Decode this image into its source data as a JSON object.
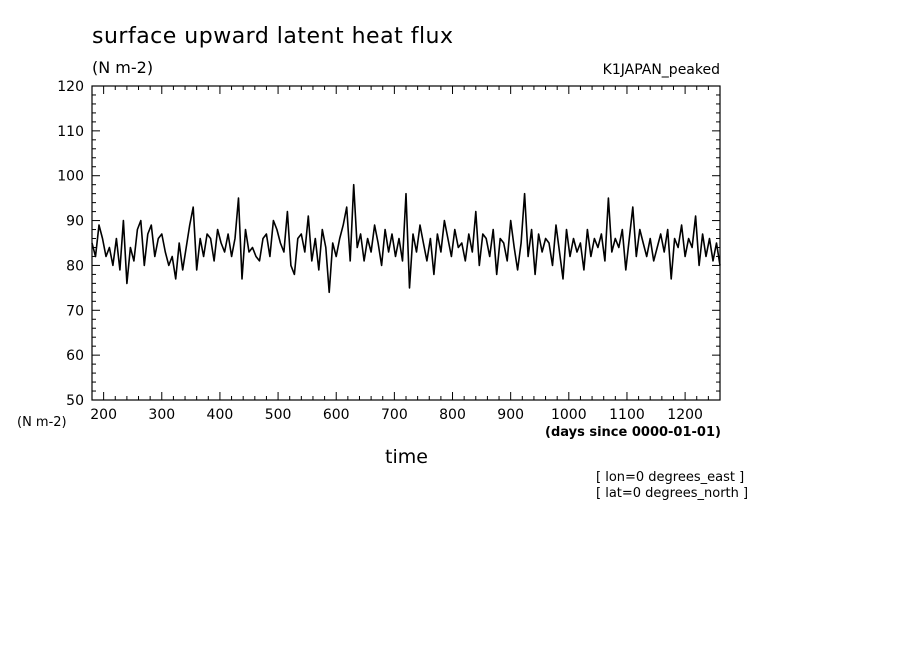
{
  "chart_data": {
    "type": "line",
    "title": "surface upward latent heat flux",
    "ylabel": "(N m-2)",
    "y_units_left": "(N m-2)",
    "xlabel": "time",
    "x_units": "(days since 0000-01-01)",
    "run_label": "K1JAPAN_peaked",
    "annotations": [
      "[ lon=0 degrees_east ]",
      "[ lat=0 degrees_north ]"
    ],
    "xlim": [
      180,
      1260
    ],
    "ylim": [
      50,
      120
    ],
    "x_major_ticks": [
      200,
      300,
      400,
      500,
      600,
      700,
      800,
      900,
      1000,
      1100,
      1200
    ],
    "y_major_ticks": [
      50,
      60,
      70,
      80,
      90,
      100,
      110,
      120
    ],
    "grid": false,
    "series": [
      {
        "x": [
          180,
          186,
          192,
          198,
          204,
          210,
          216,
          222,
          228,
          234,
          240,
          246,
          252,
          258,
          264,
          270,
          276,
          282,
          288,
          294,
          300,
          306,
          312,
          318,
          324,
          330,
          336,
          342,
          348,
          354,
          360,
          366,
          372,
          378,
          384,
          390,
          396,
          402,
          408,
          414,
          420,
          426,
          432,
          438,
          444,
          450,
          456,
          462,
          468,
          474,
          480,
          486,
          492,
          498,
          504,
          510,
          516,
          522,
          528,
          534,
          540,
          546,
          552,
          558,
          564,
          570,
          576,
          582,
          588,
          594,
          600,
          606,
          612,
          618,
          624,
          630,
          636,
          642,
          648,
          654,
          660,
          666,
          672,
          678,
          684,
          690,
          696,
          702,
          708,
          714,
          720,
          726,
          732,
          738,
          744,
          750,
          756,
          762,
          768,
          774,
          780,
          786,
          792,
          798,
          804,
          810,
          816,
          822,
          828,
          834,
          840,
          846,
          852,
          858,
          864,
          870,
          876,
          882,
          888,
          894,
          900,
          906,
          912,
          918,
          924,
          930,
          936,
          942,
          948,
          954,
          960,
          966,
          972,
          978,
          984,
          990,
          996,
          1002,
          1008,
          1014,
          1020,
          1026,
          1032,
          1038,
          1044,
          1050,
          1056,
          1062,
          1068,
          1074,
          1080,
          1086,
          1092,
          1098,
          1104,
          1110,
          1116,
          1122,
          1128,
          1134,
          1140,
          1146,
          1152,
          1158,
          1164,
          1170,
          1176,
          1182,
          1188,
          1194,
          1200,
          1206,
          1212,
          1218,
          1224,
          1230,
          1236,
          1242,
          1248,
          1254,
          1260
        ],
        "values": [
          85,
          82,
          89,
          86,
          82,
          84,
          80,
          86,
          79,
          90,
          76,
          84,
          81,
          88,
          90,
          80,
          87,
          89,
          82,
          86,
          87,
          83,
          80,
          82,
          77,
          85,
          79,
          84,
          89,
          93,
          79,
          86,
          82,
          87,
          86,
          81,
          88,
          85,
          83,
          87,
          82,
          86,
          95,
          77,
          88,
          83,
          84,
          82,
          81,
          86,
          87,
          82,
          90,
          88,
          85,
          83,
          92,
          80,
          78,
          86,
          87,
          83,
          91,
          81,
          86,
          79,
          88,
          84,
          74,
          85,
          82,
          86,
          89,
          93,
          81,
          98,
          84,
          87,
          81,
          86,
          83,
          89,
          85,
          80,
          88,
          83,
          87,
          82,
          86,
          81,
          96,
          75,
          87,
          83,
          89,
          85,
          81,
          86,
          78,
          87,
          83,
          90,
          86,
          82,
          88,
          84,
          85,
          81,
          87,
          83,
          92,
          80,
          87,
          86,
          82,
          88,
          78,
          86,
          85,
          81,
          90,
          84,
          79,
          85,
          96,
          82,
          88,
          78,
          87,
          83,
          86,
          85,
          80,
          89,
          83,
          77,
          88,
          82,
          86,
          83,
          85,
          79,
          88,
          82,
          86,
          84,
          87,
          81,
          95,
          83,
          86,
          84,
          88,
          79,
          86,
          93,
          82,
          88,
          85,
          82,
          86,
          81,
          84,
          87,
          83,
          88,
          77,
          86,
          84,
          89,
          82,
          86,
          84,
          91,
          80,
          87,
          82,
          86,
          81,
          85,
          80
        ]
      }
    ]
  }
}
